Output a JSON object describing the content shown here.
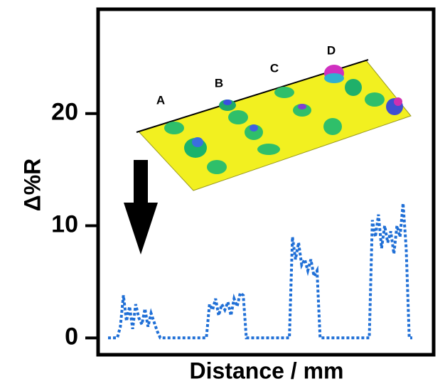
{
  "chart_data": {
    "type": "line",
    "y_label": "Δ%R",
    "x_label": "Distance / mm",
    "annotations": [
      "A",
      "B",
      "C",
      "D"
    ],
    "series": [
      {
        "color": "#1f6fd6",
        "values": [
          0,
          0,
          0,
          0,
          1,
          3.8,
          1.5,
          2.8,
          0.8,
          3,
          1.8,
          1.2,
          2.6,
          1,
          2.2,
          1.4,
          0.6,
          0,
          0,
          0,
          0,
          0,
          0,
          0,
          0,
          0,
          0,
          0,
          0,
          0,
          0,
          0,
          0,
          3,
          2.5,
          3.5,
          2,
          3,
          2.5,
          3.2,
          2,
          3.5,
          2.8,
          4,
          3.8,
          0,
          0,
          0,
          0,
          0,
          0,
          0,
          0,
          0,
          0,
          0,
          0,
          0,
          0,
          0,
          9,
          7,
          8.5,
          6.5,
          7,
          6,
          7,
          5.5,
          6,
          0,
          0,
          0,
          0,
          0,
          0,
          0,
          0,
          0,
          0,
          0,
          0,
          0,
          0,
          0,
          0,
          0,
          10.5,
          9,
          11,
          8,
          10,
          8.5,
          9.5,
          7.5,
          10,
          9,
          12,
          8,
          0,
          0
        ]
      }
    ],
    "ylim": [
      -1.5,
      29.3
    ],
    "yticks": [
      0,
      10,
      20
    ]
  }
}
